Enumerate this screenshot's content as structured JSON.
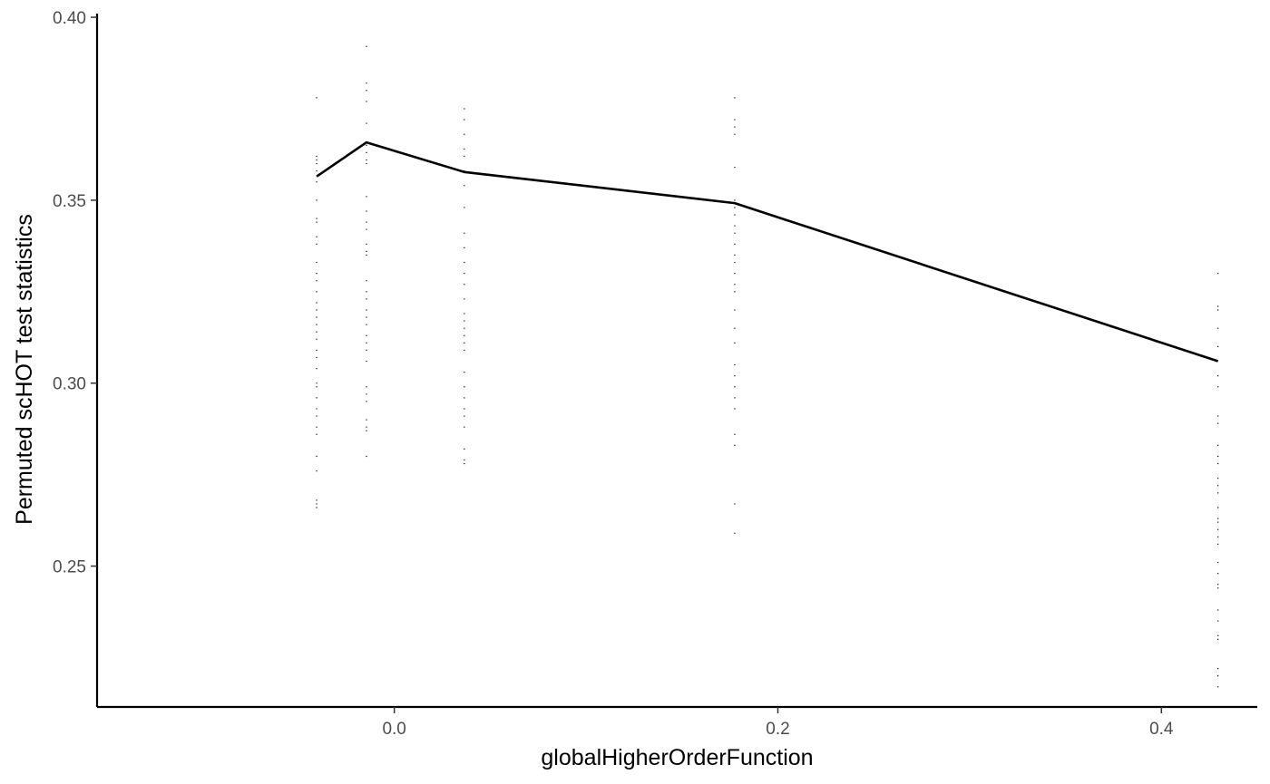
{
  "chart_data": {
    "type": "scatter",
    "xlabel": "globalHigherOrderFunction",
    "ylabel": "Permuted scHOT test statistics",
    "xlim": [
      -0.155,
      0.45
    ],
    "ylim": [
      0.2115,
      0.401
    ],
    "x_ticks": [
      {
        "value": 0.0,
        "label": "0.0"
      },
      {
        "value": 0.2,
        "label": "0.2"
      },
      {
        "value": 0.4,
        "label": "0.4"
      }
    ],
    "y_ticks": [
      {
        "value": 0.25,
        "label": "0.25"
      },
      {
        "value": 0.3,
        "label": "0.30"
      },
      {
        "value": 0.35,
        "label": "0.35"
      },
      {
        "value": 0.4,
        "label": "0.40"
      }
    ],
    "grid": false,
    "colors": {
      "points": "#000000",
      "line": "#000000",
      "axis": "#000000"
    },
    "point_groups": [
      {
        "x": -0.0405,
        "y": [
          0.378,
          0.362,
          0.361,
          0.36,
          0.358,
          0.355,
          0.35,
          0.345,
          0.344,
          0.34,
          0.338,
          0.333,
          0.33,
          0.328,
          0.325,
          0.322,
          0.32,
          0.318,
          0.316,
          0.314,
          0.312,
          0.309,
          0.307,
          0.304,
          0.3,
          0.299,
          0.296,
          0.293,
          0.291,
          0.288,
          0.286,
          0.28,
          0.276,
          0.268,
          0.267,
          0.266
        ]
      },
      {
        "x": -0.0145,
        "y": [
          0.392,
          0.382,
          0.38,
          0.377,
          0.371,
          0.365,
          0.363,
          0.361,
          0.36,
          0.351,
          0.347,
          0.344,
          0.342,
          0.338,
          0.336,
          0.335,
          0.328,
          0.325,
          0.323,
          0.32,
          0.318,
          0.316,
          0.313,
          0.311,
          0.309,
          0.306,
          0.299,
          0.297,
          0.295,
          0.29,
          0.288,
          0.287,
          0.28
        ]
      },
      {
        "x": 0.0365,
        "y": [
          0.375,
          0.372,
          0.368,
          0.364,
          0.362,
          0.358,
          0.354,
          0.348,
          0.341,
          0.337,
          0.333,
          0.33,
          0.327,
          0.323,
          0.319,
          0.317,
          0.315,
          0.313,
          0.311,
          0.309,
          0.303,
          0.299,
          0.296,
          0.293,
          0.291,
          0.288,
          0.282,
          0.279,
          0.278
        ]
      },
      {
        "x": 0.1775,
        "y": [
          0.378,
          0.372,
          0.37,
          0.368,
          0.359,
          0.35,
          0.348,
          0.346,
          0.343,
          0.341,
          0.338,
          0.335,
          0.333,
          0.33,
          0.327,
          0.325,
          0.32,
          0.315,
          0.311,
          0.305,
          0.302,
          0.299,
          0.296,
          0.293,
          0.286,
          0.283,
          0.267,
          0.259
        ]
      },
      {
        "x": 0.4295,
        "y": [
          0.33,
          0.321,
          0.32,
          0.315,
          0.31,
          0.302,
          0.299,
          0.291,
          0.289,
          0.283,
          0.28,
          0.278,
          0.274,
          0.272,
          0.27,
          0.266,
          0.263,
          0.262,
          0.26,
          0.258,
          0.256,
          0.251,
          0.248,
          0.245,
          0.244,
          0.238,
          0.235,
          0.231,
          0.23,
          0.222,
          0.22,
          0.217
        ]
      }
    ],
    "line": {
      "x": [
        -0.0405,
        -0.0145,
        0.0365,
        0.1775,
        0.4295
      ],
      "y": [
        0.3565,
        0.3658,
        0.3577,
        0.3492,
        0.306
      ]
    }
  }
}
